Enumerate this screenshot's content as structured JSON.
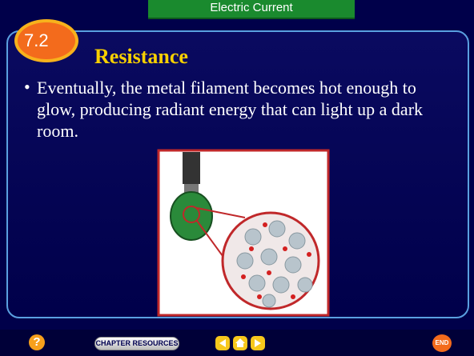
{
  "header": {
    "title": "Electric Current"
  },
  "section": {
    "number": "7.2",
    "title": "Resistance"
  },
  "bullets": [
    "Eventually, the metal filament becomes hot enough to glow, producing radiant energy that can light up a dark room."
  ],
  "nav": {
    "help": "?",
    "chapter_resources": "CHAPTER RESOURCES",
    "end": "END"
  }
}
